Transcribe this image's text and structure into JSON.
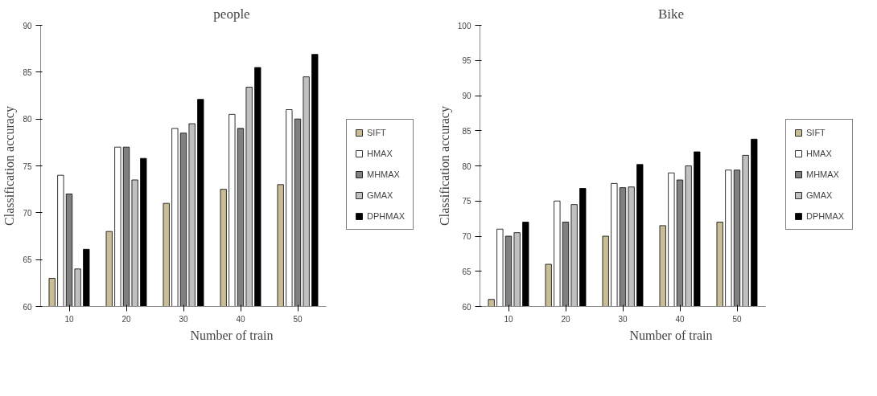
{
  "chart_data": [
    {
      "type": "bar",
      "title": "people",
      "xlabel": "Number of train",
      "ylabel": "Classification accuracy",
      "categories": [
        "10",
        "20",
        "30",
        "40",
        "50"
      ],
      "ylim": [
        60,
        90
      ],
      "yticks": [
        60,
        65,
        70,
        75,
        80,
        85,
        90
      ],
      "grid": false,
      "legend": "right",
      "series": [
        {
          "name": "SIFT",
          "color": "#c8bd96",
          "values": [
            63,
            68,
            71,
            72.5,
            73
          ]
        },
        {
          "name": "HMAX",
          "color": "#ffffff",
          "values": [
            74,
            77,
            79,
            80.5,
            81
          ]
        },
        {
          "name": "MHMAX",
          "color": "#808080",
          "values": [
            72,
            77,
            78.5,
            79,
            80
          ]
        },
        {
          "name": "GMAX",
          "color": "#c0c0c0",
          "values": [
            64,
            73.5,
            79.5,
            83.4,
            84.5
          ]
        },
        {
          "name": "DPHMAX",
          "color": "#000000",
          "values": [
            66.1,
            75.8,
            82.1,
            85.5,
            86.9
          ]
        }
      ]
    },
    {
      "type": "bar",
      "title": "Bike",
      "xlabel": "Number of train",
      "ylabel": "Classification accuracy",
      "categories": [
        "10",
        "20",
        "30",
        "40",
        "50"
      ],
      "ylim": [
        60,
        100
      ],
      "yticks": [
        60,
        65,
        70,
        75,
        80,
        85,
        90,
        95,
        100
      ],
      "grid": false,
      "legend": "right",
      "series": [
        {
          "name": "SIFT",
          "color": "#c8bd96",
          "values": [
            61,
            66,
            70,
            71.5,
            72
          ]
        },
        {
          "name": "HMAX",
          "color": "#ffffff",
          "values": [
            71,
            75,
            77.5,
            79,
            79.4
          ]
        },
        {
          "name": "MHMAX",
          "color": "#808080",
          "values": [
            70,
            72,
            76.9,
            78,
            79.4
          ]
        },
        {
          "name": "GMAX",
          "color": "#c0c0c0",
          "values": [
            70.5,
            74.5,
            77,
            80,
            81.5
          ]
        },
        {
          "name": "DPHMAX",
          "color": "#000000",
          "values": [
            72,
            76.8,
            80.2,
            82,
            83.8
          ]
        }
      ]
    }
  ]
}
